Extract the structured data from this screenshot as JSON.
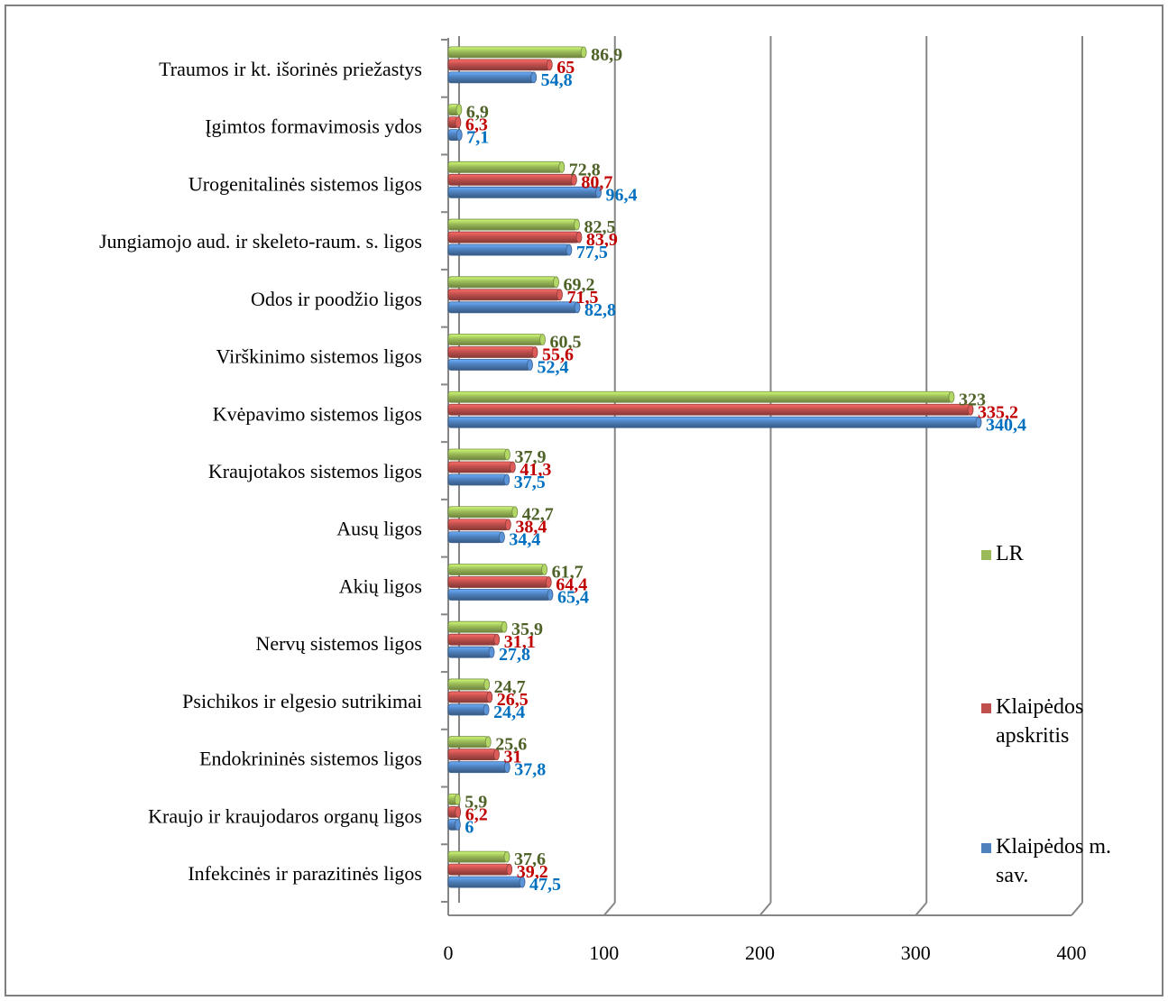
{
  "chart_data": {
    "type": "bar",
    "orientation": "horizontal",
    "style": "3d-cylinder-bars",
    "categories": [
      "Traumos ir kt. išorinės priežastys",
      "Įgimtos formavimosis ydos",
      "Urogenitalinės sistemos ligos",
      "Jungiamojo aud. ir skeleto-raum. s. ligos",
      "Odos ir poodžio ligos",
      "Virškinimo sistemos ligos",
      "Kvėpavimo sistemos ligos",
      "Kraujotakos sistemos ligos",
      "Ausų ligos",
      "Akių ligos",
      "Nervų sistemos ligos",
      "Psichikos ir elgesio sutrikimai",
      "Endokrininės sistemos ligos",
      "Kraujo ir kraujodaros organų ligos",
      "Infekcinės ir parazitinės ligos"
    ],
    "series": [
      {
        "name": "LR",
        "color": "#9BBB59",
        "label_color": "#4F6228",
        "values": [
          86.9,
          6.9,
          72.8,
          82.5,
          69.2,
          60.5,
          323,
          37.9,
          42.7,
          61.7,
          35.9,
          24.7,
          25.6,
          5.9,
          37.6
        ],
        "labels": [
          "86,9",
          "6,9",
          "72,8",
          "82,5",
          "69,2",
          "60,5",
          "323",
          "37,9",
          "42,7",
          "61,7",
          "35,9",
          "24,7",
          "25,6",
          "5,9",
          "37,6"
        ]
      },
      {
        "name": "Klaipėdos apskritis",
        "color": "#C0504D",
        "label_color": "#C00000",
        "values": [
          65,
          6.3,
          80.7,
          83.9,
          71.5,
          55.6,
          335.2,
          41.3,
          38.4,
          64.4,
          31.1,
          26.5,
          31,
          6.2,
          39.2
        ],
        "labels": [
          "65",
          "6,3",
          "80,7",
          "83,9",
          "71,5",
          "55,6",
          "335,2",
          "41,3",
          "38,4",
          "64,4",
          "31,1",
          "26,5",
          "31",
          "6,2",
          "39,2"
        ]
      },
      {
        "name": "Klaipėdos m. sav.",
        "color": "#4F81BD",
        "label_color": "#0070C0",
        "values": [
          54.8,
          7.1,
          96.4,
          77.5,
          82.8,
          52.4,
          340.4,
          37.5,
          34.4,
          65.4,
          27.8,
          24.4,
          37.8,
          6,
          47.5
        ],
        "labels": [
          "54,8",
          "7,1",
          "96,4",
          "77,5",
          "82,8",
          "52,4",
          "340,4",
          "37,5",
          "34,4",
          "65,4",
          "27,8",
          "24,4",
          "37,8",
          "6",
          "47,5"
        ]
      }
    ],
    "legend": [
      {
        "lines": [
          "LR"
        ],
        "color": "#9BBB59"
      },
      {
        "lines": [
          "Klaipėdos",
          "apskritis"
        ],
        "color": "#C0504D"
      },
      {
        "lines": [
          "Klaipėdos m.",
          "sav."
        ],
        "color": "#4F81BD"
      }
    ],
    "legend_position": "right",
    "xlim": [
      0,
      400
    ],
    "xticks": [
      0,
      100,
      200,
      300,
      400
    ],
    "xtick_labels": [
      "0",
      "100",
      "200",
      "300",
      "400"
    ],
    "grid": "vertical",
    "title": "",
    "xlabel": "",
    "ylabel": ""
  }
}
